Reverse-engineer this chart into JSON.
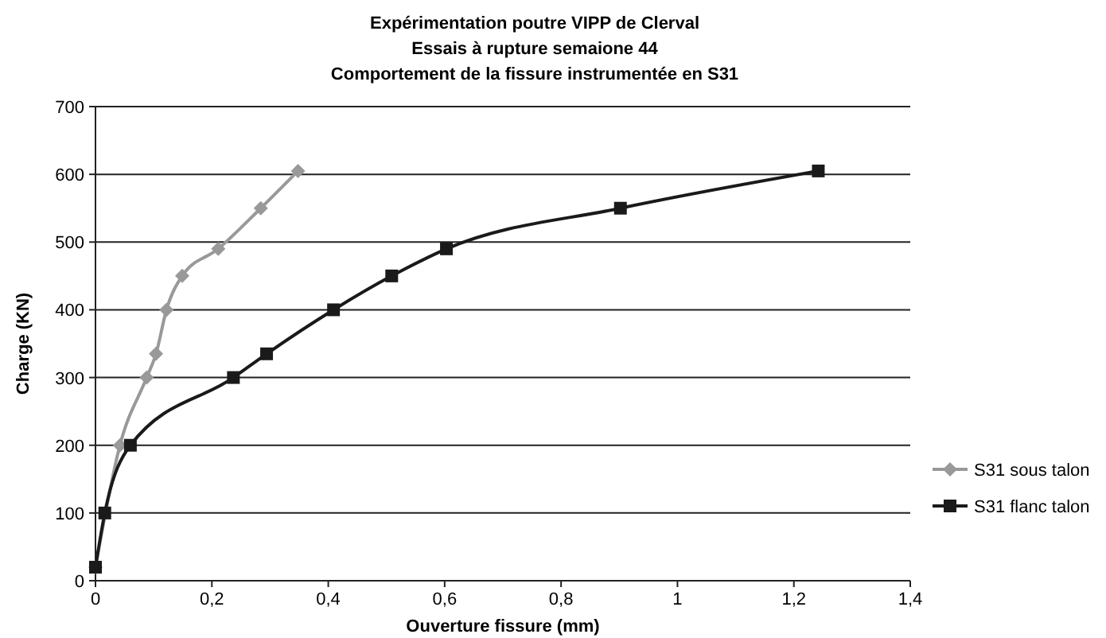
{
  "chart_data": {
    "type": "line",
    "title": "Expérimentation poutre VIPP de Clerval\nEssais à rupture semaione 44\nComportement de la fissure instrumentée en S31",
    "xlabel": "Ouverture fissure (mm)",
    "ylabel": "Charge (KN)",
    "xlim": [
      0,
      1.4
    ],
    "xticks": [
      0,
      {
        "value": 0.2,
        "label": "0,2"
      },
      {
        "value": 0.4,
        "label": "0,4"
      },
      {
        "value": 0.6,
        "label": "0,6"
      },
      {
        "value": 0.8,
        "label": "0,8"
      },
      1,
      {
        "value": 1.2,
        "label": "1,2"
      },
      {
        "value": 1.4,
        "label": "1,4"
      }
    ],
    "ylim": [
      0,
      700
    ],
    "yticks": [
      0,
      100,
      200,
      300,
      400,
      500,
      600,
      700
    ],
    "grid": "y",
    "legend": "right",
    "series": [
      {
        "name": "S31 sous talon",
        "color": "#999999",
        "marker": "diamond",
        "x": [
          0,
          0.042,
          0.088,
          0.104,
          0.122,
          0.149,
          0.211,
          0.284,
          0.348
        ],
        "values": [
          20,
          200,
          300,
          335,
          400,
          450,
          490,
          550,
          605
        ]
      },
      {
        "name": "S31 flanc talon",
        "color": "#1a1a1a",
        "marker": "square",
        "x": [
          0,
          0.016,
          0.06,
          0.237,
          0.294,
          0.409,
          0.509,
          0.603,
          0.902,
          1.242
        ],
        "values": [
          20,
          100,
          200,
          300,
          335,
          400,
          450,
          490,
          550,
          605
        ]
      }
    ]
  }
}
